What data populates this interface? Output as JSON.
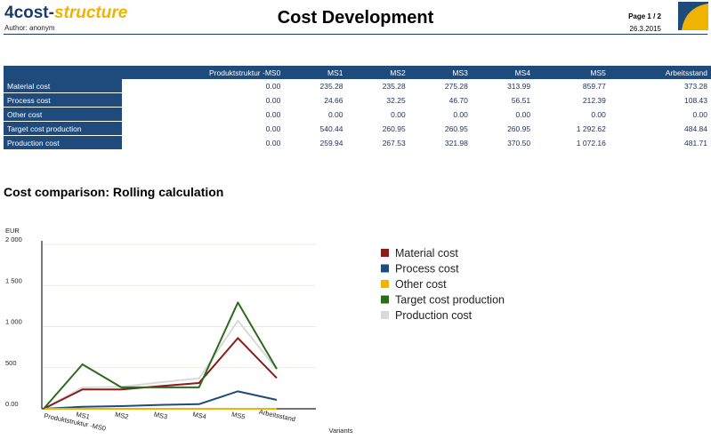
{
  "header": {
    "brand_main": "4cost-",
    "brand_accent": "structure",
    "author": "Author: anonym",
    "title": "Cost Development",
    "page": "Page 1 / 2",
    "date": "26.3.2015"
  },
  "table": {
    "columns": [
      "Produktstruktur -MS0",
      "MS1",
      "MS2",
      "MS3",
      "MS4",
      "MS5",
      "Arbeitsstand"
    ],
    "rows": [
      {
        "label": "Material cost",
        "values": [
          "0.00",
          "235.28",
          "235.28",
          "275.28",
          "313.99",
          "859.77",
          "373.28"
        ]
      },
      {
        "label": "Process cost",
        "values": [
          "0.00",
          "24.66",
          "32.25",
          "46.70",
          "56.51",
          "212.39",
          "108.43"
        ]
      },
      {
        "label": "Other cost",
        "values": [
          "0.00",
          "0.00",
          "0.00",
          "0.00",
          "0.00",
          "0.00",
          "0.00"
        ]
      },
      {
        "label": "Target cost production",
        "values": [
          "0.00",
          "540.44",
          "260.95",
          "260.95",
          "260.95",
          "1 292.62",
          "484.84"
        ]
      },
      {
        "label": "Production cost",
        "values": [
          "0.00",
          "259.94",
          "267.53",
          "321.98",
          "370.50",
          "1 072.16",
          "481.71"
        ]
      }
    ]
  },
  "section_title": "Cost comparison: Rolling calculation",
  "chart_data": {
    "type": "line",
    "title": "Cost comparison: Rolling calculation",
    "ylabel": "EUR",
    "xlabel": "Variants",
    "ylim": [
      0,
      2000
    ],
    "yticks": [
      "0.00",
      "500",
      "1 000",
      "1 500",
      "2 000"
    ],
    "ytick_values": [
      0,
      500,
      1000,
      1500,
      2000
    ],
    "categories": [
      "Produktstruktur -MS0",
      "MS1",
      "MS2",
      "MS3",
      "MS4",
      "MS5",
      "Arbeitsstand"
    ],
    "legend_position": "right",
    "series": [
      {
        "name": "Material cost",
        "color": "#8b1a1a",
        "values": [
          0,
          235.28,
          235.28,
          275.28,
          313.99,
          859.77,
          373.28
        ]
      },
      {
        "name": "Process cost",
        "color": "#1f4a7c",
        "values": [
          0,
          24.66,
          32.25,
          46.7,
          56.51,
          212.39,
          108.43
        ]
      },
      {
        "name": "Other cost",
        "color": "#f0b400",
        "values": [
          0,
          0,
          0,
          0,
          0,
          0,
          0
        ]
      },
      {
        "name": "Target cost production",
        "color": "#2d6a1e",
        "values": [
          0,
          540.44,
          260.95,
          260.95,
          260.95,
          1292.62,
          484.84
        ]
      },
      {
        "name": "Production cost",
        "color": "#d9d9d9",
        "values": [
          0,
          259.94,
          267.53,
          321.98,
          370.5,
          1072.16,
          481.71
        ]
      }
    ]
  }
}
